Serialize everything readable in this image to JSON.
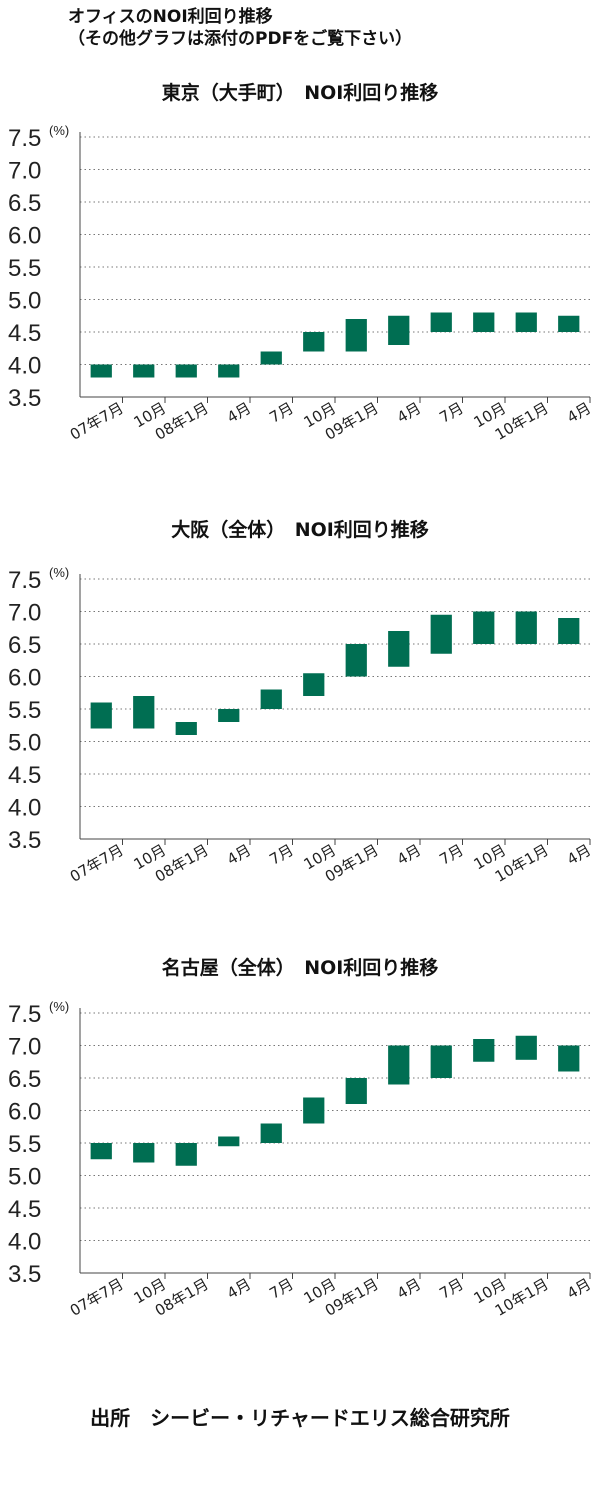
{
  "header": {
    "line1": "オフィスのNOI利回り推移",
    "line2": "（その他グラフは添付のPDFをご覧下さい）"
  },
  "source": "出所　シービー・リチャードエリス総合研究所",
  "chart_data": [
    {
      "type": "bar",
      "title": "東京（大手町）　NOI利回り推移",
      "unit": "(%)",
      "ylim": [
        3.5,
        7.5
      ],
      "yticks": [
        "3.5",
        "4.0",
        "4.5",
        "5.0",
        "5.5",
        "6.0",
        "6.5",
        "7.0",
        "7.5"
      ],
      "grid": true,
      "categories": [
        "07年7月",
        "10月",
        "08年1月",
        "4月",
        "7月",
        "10月",
        "09年1月",
        "4月",
        "7月",
        "10月",
        "10年1月",
        "4月"
      ],
      "low": [
        3.8,
        3.8,
        3.8,
        3.8,
        4.0,
        4.2,
        4.2,
        4.3,
        4.5,
        4.5,
        4.5,
        4.5
      ],
      "high": [
        4.0,
        4.0,
        4.0,
        4.0,
        4.2,
        4.5,
        4.7,
        4.75,
        4.8,
        4.8,
        4.8,
        4.75
      ]
    },
    {
      "type": "bar",
      "title": "大阪（全体）　NOI利回り推移",
      "unit": "(%)",
      "ylim": [
        3.5,
        7.5
      ],
      "yticks": [
        "3.5",
        "4.0",
        "4.5",
        "5.0",
        "5.5",
        "6.0",
        "6.5",
        "7.0",
        "7.5"
      ],
      "grid": true,
      "categories": [
        "07年7月",
        "10月",
        "08年1月",
        "4月",
        "7月",
        "10月",
        "09年1月",
        "4月",
        "7月",
        "10月",
        "10年1月",
        "4月"
      ],
      "low": [
        5.2,
        5.2,
        5.1,
        5.3,
        5.5,
        5.7,
        6.0,
        6.15,
        6.35,
        6.5,
        6.5,
        6.5
      ],
      "high": [
        5.6,
        5.7,
        5.3,
        5.5,
        5.8,
        6.05,
        6.5,
        6.7,
        6.95,
        7.0,
        7.0,
        6.9
      ]
    },
    {
      "type": "bar",
      "title": "名古屋（全体）　NOI利回り推移",
      "unit": "(%)",
      "ylim": [
        3.5,
        7.5
      ],
      "yticks": [
        "3.5",
        "4.0",
        "4.5",
        "5.0",
        "5.5",
        "6.0",
        "6.5",
        "7.0",
        "7.5"
      ],
      "grid": true,
      "categories": [
        "07年7月",
        "10月",
        "08年1月",
        "4月",
        "7月",
        "10月",
        "09年1月",
        "4月",
        "7月",
        "10月",
        "10年1月",
        "4月"
      ],
      "low": [
        5.25,
        5.2,
        5.15,
        5.45,
        5.5,
        5.8,
        6.1,
        6.4,
        6.5,
        6.75,
        6.78,
        6.6
      ],
      "high": [
        5.5,
        5.5,
        5.5,
        5.6,
        5.8,
        6.2,
        6.5,
        7.0,
        7.0,
        7.1,
        7.15,
        7.0
      ]
    }
  ]
}
